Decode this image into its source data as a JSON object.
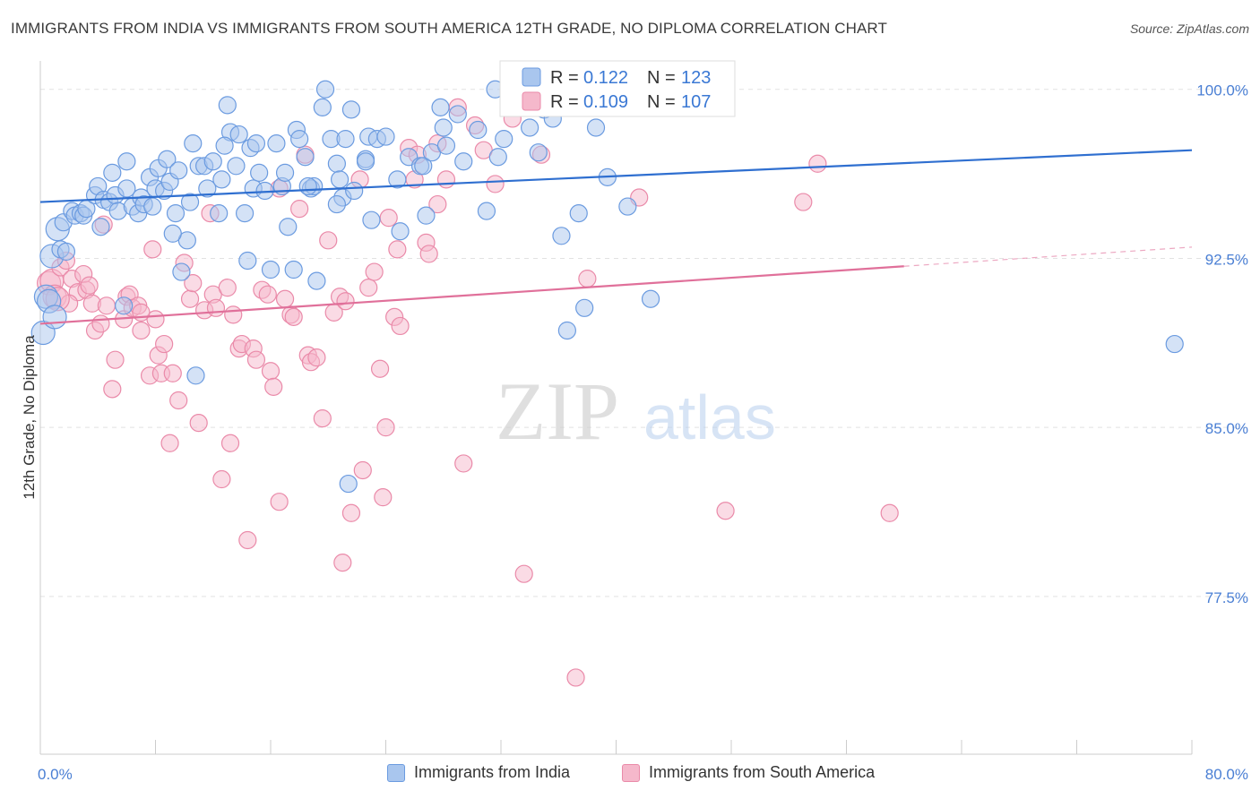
{
  "title": "IMMIGRANTS FROM INDIA VS IMMIGRANTS FROM SOUTH AMERICA 12TH GRADE, NO DIPLOMA CORRELATION CHART",
  "source": "Source: ZipAtlas.com",
  "watermark": {
    "zip": "ZIP",
    "atlas": "atlas"
  },
  "colors": {
    "india_fill": "#a9c6ee",
    "india_stroke": "#6b9be0",
    "india_line": "#2f6fd0",
    "sa_fill": "#f5b8cb",
    "sa_stroke": "#ea8aa9",
    "sa_line": "#e0709a",
    "axis_label": "#4a7fd4",
    "grid": "#e2e2e2"
  },
  "legend_box": {
    "rows": [
      {
        "r_label": "R = ",
        "r_value": "0.122",
        "n_label": "N = ",
        "n_value": "123"
      },
      {
        "r_label": "R = ",
        "r_value": "0.109",
        "n_label": "N = ",
        "n_value": "107"
      }
    ]
  },
  "bottom_legend": [
    {
      "label": "Immigrants from India"
    },
    {
      "label": "Immigrants from South America"
    }
  ],
  "chart_data": {
    "type": "scatter",
    "ylabel": "12th Grade, No Diploma",
    "xlabel": "",
    "xlim": [
      0,
      80
    ],
    "ylim": [
      70.5,
      101.5
    ],
    "x_tick_labels": [
      "0.0%",
      "80.0%"
    ],
    "y_ticks": [
      77.5,
      85.0,
      92.5,
      100.0
    ],
    "y_tick_labels": [
      "77.5%",
      "85.0%",
      "92.5%",
      "100.0%"
    ],
    "grid": "horizontal dashed",
    "legend_placement": "top-center",
    "series": [
      {
        "name": "Immigrants from India",
        "R": 0.122,
        "N": 123,
        "trend": {
          "x0": 0,
          "y0": 95.0,
          "x1": 80,
          "y1": 97.3,
          "solid_until": 80
        },
        "points": [
          [
            0.2,
            89.2
          ],
          [
            0.4,
            90.8
          ],
          [
            0.6,
            90.6
          ],
          [
            0.8,
            92.6
          ],
          [
            1.0,
            89.9
          ],
          [
            1.2,
            93.8
          ],
          [
            1.4,
            92.9
          ],
          [
            1.6,
            94.1
          ],
          [
            1.8,
            92.8
          ],
          [
            2.2,
            94.6
          ],
          [
            2.4,
            94.4
          ],
          [
            2.8,
            94.5
          ],
          [
            3.0,
            94.4
          ],
          [
            3.2,
            94.7
          ],
          [
            3.8,
            95.3
          ],
          [
            4.0,
            95.7
          ],
          [
            4.2,
            93.9
          ],
          [
            4.4,
            95.1
          ],
          [
            4.8,
            95.0
          ],
          [
            5.0,
            96.3
          ],
          [
            5.2,
            95.3
          ],
          [
            5.4,
            94.6
          ],
          [
            5.8,
            90.4
          ],
          [
            6.0,
            95.6
          ],
          [
            6.4,
            94.8
          ],
          [
            6.8,
            94.5
          ],
          [
            7.0,
            95.2
          ],
          [
            7.2,
            94.9
          ],
          [
            7.6,
            96.1
          ],
          [
            7.8,
            94.8
          ],
          [
            8.0,
            95.6
          ],
          [
            8.2,
            96.5
          ],
          [
            8.6,
            95.5
          ],
          [
            8.8,
            96.9
          ],
          [
            9.0,
            95.9
          ],
          [
            9.4,
            94.5
          ],
          [
            9.6,
            96.4
          ],
          [
            9.8,
            91.9
          ],
          [
            10.2,
            93.3
          ],
          [
            10.4,
            95.0
          ],
          [
            10.6,
            97.6
          ],
          [
            10.8,
            87.3
          ],
          [
            11.0,
            96.6
          ],
          [
            11.4,
            96.6
          ],
          [
            11.6,
            95.6
          ],
          [
            12.0,
            96.8
          ],
          [
            12.4,
            94.5
          ],
          [
            12.6,
            96.0
          ],
          [
            13.0,
            99.3
          ],
          [
            13.2,
            98.1
          ],
          [
            13.6,
            96.6
          ],
          [
            13.8,
            98.0
          ],
          [
            14.2,
            94.5
          ],
          [
            14.4,
            92.4
          ],
          [
            14.6,
            97.4
          ],
          [
            14.8,
            95.6
          ],
          [
            15.0,
            97.6
          ],
          [
            15.2,
            96.3
          ],
          [
            15.6,
            95.5
          ],
          [
            16.0,
            92.0
          ],
          [
            16.4,
            97.6
          ],
          [
            16.8,
            95.7
          ],
          [
            17.0,
            96.3
          ],
          [
            17.2,
            93.9
          ],
          [
            17.6,
            92.0
          ],
          [
            17.8,
            98.2
          ],
          [
            18.0,
            97.8
          ],
          [
            18.4,
            97.0
          ],
          [
            18.8,
            95.6
          ],
          [
            19.0,
            95.7
          ],
          [
            19.2,
            91.5
          ],
          [
            19.6,
            99.2
          ],
          [
            19.8,
            100.0
          ],
          [
            20.2,
            97.8
          ],
          [
            20.6,
            96.7
          ],
          [
            20.8,
            96.0
          ],
          [
            21.0,
            95.2
          ],
          [
            21.2,
            97.8
          ],
          [
            21.4,
            82.5
          ],
          [
            21.6,
            99.1
          ],
          [
            21.8,
            95.5
          ],
          [
            22.6,
            96.9
          ],
          [
            22.8,
            97.9
          ],
          [
            23.0,
            94.2
          ],
          [
            23.4,
            97.8
          ],
          [
            24.0,
            97.9
          ],
          [
            24.8,
            96.0
          ],
          [
            25.0,
            93.7
          ],
          [
            25.6,
            97.0
          ],
          [
            26.4,
            96.6
          ],
          [
            26.8,
            94.4
          ],
          [
            26.6,
            96.6
          ],
          [
            27.2,
            97.2
          ],
          [
            27.8,
            99.2
          ],
          [
            28.0,
            98.3
          ],
          [
            28.2,
            97.5
          ],
          [
            29.0,
            98.9
          ],
          [
            29.4,
            96.8
          ],
          [
            30.4,
            98.2
          ],
          [
            31.0,
            94.6
          ],
          [
            31.6,
            100.0
          ],
          [
            31.8,
            97.0
          ],
          [
            32.2,
            97.8
          ],
          [
            33.4,
            99.2
          ],
          [
            34.0,
            98.3
          ],
          [
            35.0,
            99.1
          ],
          [
            34.6,
            97.2
          ],
          [
            35.6,
            98.7
          ],
          [
            36.2,
            93.5
          ],
          [
            36.6,
            89.3
          ],
          [
            37.4,
            94.5
          ],
          [
            37.8,
            90.3
          ],
          [
            38.6,
            98.3
          ],
          [
            39.4,
            96.1
          ],
          [
            40.8,
            94.8
          ],
          [
            42.4,
            90.7
          ],
          [
            78.8,
            88.7
          ],
          [
            20.6,
            94.9
          ],
          [
            18.6,
            95.7
          ],
          [
            9.2,
            93.6
          ],
          [
            6.0,
            96.8
          ],
          [
            12.8,
            97.5
          ],
          [
            22.6,
            96.8
          ]
        ]
      },
      {
        "name": "Immigrants from South America",
        "R": 0.109,
        "N": 107,
        "trend": {
          "x0": 0,
          "y0": 89.6,
          "x1": 80,
          "y1": 93.0,
          "solid_until": 60
        },
        "points": [
          [
            0.6,
            91.4
          ],
          [
            0.8,
            91.5
          ],
          [
            1.0,
            90.8
          ],
          [
            1.4,
            92.1
          ],
          [
            1.8,
            92.4
          ],
          [
            2.2,
            91.6
          ],
          [
            2.6,
            91.0
          ],
          [
            3.0,
            91.8
          ],
          [
            3.2,
            91.1
          ],
          [
            3.4,
            91.3
          ],
          [
            3.6,
            90.5
          ],
          [
            3.8,
            89.3
          ],
          [
            4.2,
            89.6
          ],
          [
            4.6,
            90.4
          ],
          [
            5.0,
            86.7
          ],
          [
            5.2,
            88.0
          ],
          [
            5.8,
            89.8
          ],
          [
            6.0,
            90.8
          ],
          [
            6.2,
            90.9
          ],
          [
            6.4,
            90.3
          ],
          [
            6.8,
            90.4
          ],
          [
            7.0,
            89.3
          ],
          [
            7.6,
            87.3
          ],
          [
            7.8,
            92.9
          ],
          [
            8.2,
            88.2
          ],
          [
            8.4,
            87.4
          ],
          [
            8.6,
            88.7
          ],
          [
            9.0,
            84.3
          ],
          [
            9.6,
            86.2
          ],
          [
            10.0,
            92.3
          ],
          [
            10.4,
            90.7
          ],
          [
            10.6,
            91.4
          ],
          [
            11.0,
            85.2
          ],
          [
            11.4,
            90.2
          ],
          [
            12.0,
            90.9
          ],
          [
            12.2,
            90.3
          ],
          [
            12.6,
            82.7
          ],
          [
            13.0,
            91.2
          ],
          [
            13.2,
            84.3
          ],
          [
            13.8,
            88.5
          ],
          [
            14.0,
            88.7
          ],
          [
            14.4,
            80.0
          ],
          [
            14.8,
            88.5
          ],
          [
            15.0,
            88.0
          ],
          [
            15.4,
            91.1
          ],
          [
            15.8,
            90.9
          ],
          [
            16.0,
            87.5
          ],
          [
            16.2,
            86.8
          ],
          [
            16.6,
            81.7
          ],
          [
            17.0,
            90.7
          ],
          [
            17.4,
            90.0
          ],
          [
            17.6,
            89.9
          ],
          [
            18.0,
            94.7
          ],
          [
            18.4,
            97.1
          ],
          [
            18.6,
            88.2
          ],
          [
            18.8,
            87.9
          ],
          [
            19.2,
            88.1
          ],
          [
            19.6,
            85.4
          ],
          [
            20.0,
            93.3
          ],
          [
            20.4,
            90.1
          ],
          [
            20.8,
            90.8
          ],
          [
            21.0,
            79.0
          ],
          [
            21.6,
            81.2
          ],
          [
            22.2,
            96.0
          ],
          [
            22.4,
            83.1
          ],
          [
            22.8,
            91.2
          ],
          [
            23.2,
            91.9
          ],
          [
            23.6,
            87.6
          ],
          [
            23.8,
            81.9
          ],
          [
            24.2,
            94.3
          ],
          [
            24.6,
            89.9
          ],
          [
            24.8,
            92.9
          ],
          [
            25.0,
            89.5
          ],
          [
            25.6,
            97.4
          ],
          [
            26.0,
            96.0
          ],
          [
            26.2,
            97.1
          ],
          [
            26.8,
            93.2
          ],
          [
            27.0,
            92.7
          ],
          [
            27.6,
            97.6
          ],
          [
            28.2,
            96.0
          ],
          [
            29.0,
            99.2
          ],
          [
            29.4,
            83.4
          ],
          [
            30.2,
            98.4
          ],
          [
            30.8,
            97.3
          ],
          [
            31.6,
            95.8
          ],
          [
            32.8,
            98.7
          ],
          [
            33.6,
            78.5
          ],
          [
            34.8,
            97.1
          ],
          [
            37.2,
            73.9
          ],
          [
            38.0,
            91.6
          ],
          [
            41.6,
            95.2
          ],
          [
            47.6,
            81.3
          ],
          [
            53.0,
            95.0
          ],
          [
            54.0,
            96.7
          ],
          [
            59.0,
            81.2
          ],
          [
            8.0,
            89.8
          ],
          [
            4.4,
            94.0
          ],
          [
            2.0,
            90.5
          ],
          [
            16.6,
            95.6
          ],
          [
            21.2,
            90.6
          ],
          [
            13.4,
            90.0
          ],
          [
            9.2,
            87.4
          ],
          [
            11.8,
            94.5
          ],
          [
            27.6,
            94.9
          ],
          [
            24.0,
            85.0
          ],
          [
            1.2,
            90.7
          ],
          [
            7.0,
            90.1
          ]
        ]
      }
    ]
  }
}
